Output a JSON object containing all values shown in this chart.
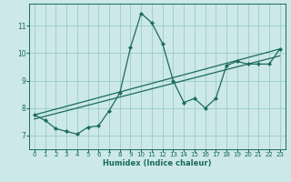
{
  "xlabel": "Humidex (Indice chaleur)",
  "bg_color": "#cce8e8",
  "grid_color": "#99cccc",
  "line_color": "#1a6b5a",
  "xlim": [
    -0.5,
    23.5
  ],
  "ylim": [
    6.5,
    11.8
  ],
  "yticks": [
    7,
    8,
    9,
    10,
    11
  ],
  "xticks": [
    0,
    1,
    2,
    3,
    4,
    5,
    6,
    7,
    8,
    9,
    10,
    11,
    12,
    13,
    14,
    15,
    16,
    17,
    18,
    19,
    20,
    21,
    22,
    23
  ],
  "series1_x": [
    0,
    1,
    2,
    3,
    4,
    5,
    6,
    7,
    8,
    9,
    10,
    11,
    12,
    13,
    14,
    15,
    16,
    17,
    18,
    19,
    20,
    21,
    22,
    23
  ],
  "series1_y": [
    7.75,
    7.55,
    7.25,
    7.15,
    7.05,
    7.3,
    7.35,
    7.9,
    8.55,
    10.2,
    11.45,
    11.1,
    10.35,
    9.0,
    8.2,
    8.35,
    8.0,
    8.35,
    9.55,
    9.7,
    9.6,
    9.6,
    9.6,
    10.15
  ],
  "series2_x": [
    0,
    23
  ],
  "series2_y": [
    7.6,
    9.9
  ],
  "series3_x": [
    0,
    23
  ],
  "series3_y": [
    7.75,
    10.15
  ]
}
